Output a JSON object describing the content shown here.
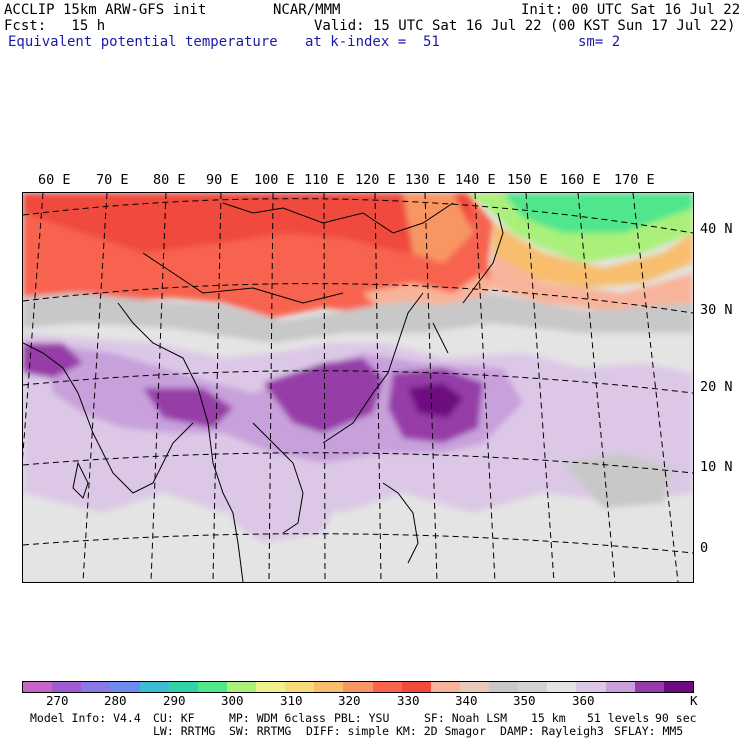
{
  "header": {
    "left_line1": "ACCLIP 15km ARW-GFS init",
    "left_line2": "Fcst:   15 h",
    "center_line1": "NCAR/MMM",
    "right_line1": "Init: 00 UTC Sat 16 Jul 22",
    "valid_line": "Valid: 15 UTC Sat 16 Jul 22 (00 KST Sun 17 Jul 22)",
    "field_name": "Equivalent potential temperature",
    "level": "at k-index =  51",
    "smoothing": "sm= 2"
  },
  "map": {
    "longitude_labels": [
      "60 E",
      "70 E",
      "80 E",
      "90 E",
      "100 E",
      "110 E",
      "120 E",
      "130 E",
      "140 E",
      "150 E",
      "160 E",
      "170 E"
    ],
    "latitude_labels": [
      "40 N",
      "30 N",
      "20 N",
      "10 N",
      "0"
    ]
  },
  "colorbar": {
    "colors": [
      "#c864c8",
      "#a05ad2",
      "#8a78e6",
      "#6e8cf0",
      "#3cbed2",
      "#32d2aa",
      "#50e68c",
      "#aaf07a",
      "#f0f08c",
      "#f8dc78",
      "#f8be6e",
      "#f89664",
      "#f86450",
      "#f04a3c",
      "#f8b49a",
      "#e8c8b8",
      "#c8c8c8",
      "#d2d2d2",
      "#e4e4e4",
      "#dcc8e6",
      "#c8a0dc",
      "#963ca8",
      "#6e0a82"
    ],
    "tick_labels": [
      "270",
      "280",
      "290",
      "300",
      "310",
      "320",
      "330",
      "340",
      "350",
      "360"
    ],
    "unit": "K"
  },
  "footer": {
    "line1": [
      "Model Info: V4.4",
      "CU: KF",
      "MP: WDM 6class",
      "PBL: YSU",
      "SF: Noah LSM",
      "15 km",
      "51 levels",
      "90 sec"
    ],
    "line2": [
      "LW: RRTMG",
      "SW: RRTMG",
      "DIFF: simple",
      "KM: 2D Smagor",
      "DAMP: Rayleigh3",
      "SFLAY: MM5"
    ]
  }
}
